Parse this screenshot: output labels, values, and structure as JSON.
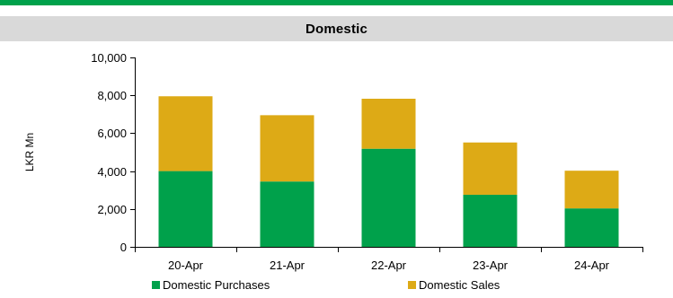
{
  "header": {
    "title": "Domestic"
  },
  "colors": {
    "stripe": "#00A14B",
    "header_bg": "#D9D9D9",
    "purchases": "#00A14B",
    "sales": "#DDAA16",
    "axis": "#000000"
  },
  "chart_data": {
    "type": "bar",
    "stacked": true,
    "title": "Domestic",
    "xlabel": "",
    "ylabel": "LKR Mn",
    "categories": [
      "20-Apr",
      "21-Apr",
      "22-Apr",
      "23-Apr",
      "24-Apr"
    ],
    "series": [
      {
        "name": "Domestic Purchases",
        "values": [
          4000,
          3450,
          5180,
          2750,
          2030
        ]
      },
      {
        "name": "Domestic Sales",
        "values": [
          3950,
          3500,
          2640,
          2760,
          1990
        ]
      }
    ],
    "ylim": [
      0,
      10000
    ],
    "yticks": [
      0,
      2000,
      4000,
      6000,
      8000,
      10000
    ],
    "ytick_labels": [
      "0",
      "2,000",
      "4,000",
      "6,000",
      "8,000",
      "10,000"
    ],
    "grid": false,
    "legend": "bottom"
  }
}
